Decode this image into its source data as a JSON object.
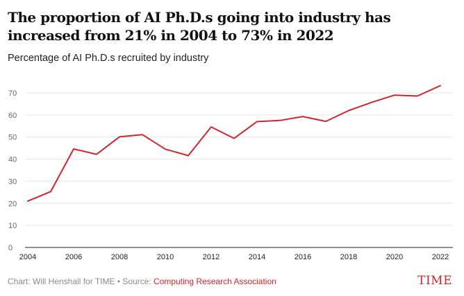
{
  "header": {
    "title": "The proportion of AI Ph.D.s going into industry has increased from 21% in 2004 to 73% in 2022",
    "subtitle": "Percentage of AI Ph.D.s recruited by industry"
  },
  "footer": {
    "credit": "Chart: Will Henshall for TIME • Source: ",
    "source_link": "Computing Research Association",
    "brand": "TIME"
  },
  "colors": {
    "line": "#d2242a",
    "grid": "#e6e6e6",
    "axis": "#222222",
    "tick_text": "#666666"
  },
  "chart_data": {
    "type": "line",
    "title": "The proportion of AI Ph.D.s going into industry has increased from 21% in 2004 to 73% in 2022",
    "subtitle": "Percentage of AI Ph.D.s recruited by industry",
    "xlabel": "",
    "ylabel": "",
    "xlim": [
      2004,
      2022
    ],
    "ylim": [
      0,
      70
    ],
    "grid": true,
    "x_ticks": [
      2004,
      2006,
      2008,
      2010,
      2012,
      2014,
      2016,
      2018,
      2020,
      2022
    ],
    "y_ticks": [
      0,
      10,
      20,
      30,
      40,
      50,
      60,
      70
    ],
    "series": [
      {
        "name": "Percentage of AI Ph.D.s recruited by industry",
        "x": [
          2004,
          2005,
          2006,
          2007,
          2008,
          2009,
          2010,
          2011,
          2012,
          2013,
          2014,
          2015,
          2016,
          2017,
          2018,
          2019,
          2020,
          2021,
          2022
        ],
        "values": [
          21,
          25.3,
          44.6,
          42.2,
          50.1,
          51.1,
          44.5,
          41.6,
          54.6,
          49.4,
          57,
          57.5,
          59.3,
          57.1,
          62,
          65.7,
          69,
          68.6,
          73.3
        ]
      }
    ]
  }
}
